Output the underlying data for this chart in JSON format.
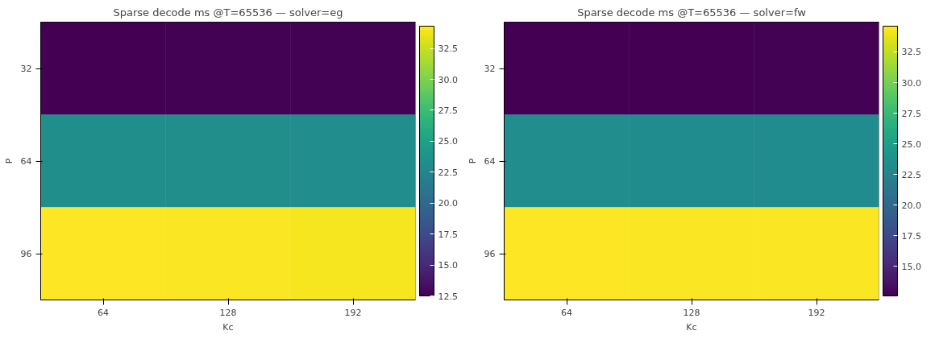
{
  "chart_data": [
    {
      "type": "heatmap",
      "title": "Sparse decode ms @T=65536 — solver=eg",
      "xlabel": "Kc",
      "ylabel": "P",
      "categories": [
        "64",
        "128",
        "192"
      ],
      "y_categories": [
        "32",
        "64",
        "96"
      ],
      "cells": [
        [
          12.5,
          12.6,
          12.6
        ],
        [
          23.4,
          23.3,
          23.2
        ],
        [
          34.3,
          34.2,
          34.0
        ]
      ],
      "clim": [
        12.5,
        34.3
      ],
      "cticks": [
        12.5,
        {
          "value": 15,
          "label": "15.0"
        },
        17.5,
        {
          "value": 20,
          "label": "20.0"
        },
        22.5,
        {
          "value": 25,
          "label": "25.0"
        },
        27.5,
        {
          "value": 30,
          "label": "30.0"
        },
        32.5
      ]
    },
    {
      "type": "heatmap",
      "title": "Sparse decode ms @T=65536 — solver=fw",
      "xlabel": "Kc",
      "ylabel": "P",
      "categories": [
        "64",
        "128",
        "192"
      ],
      "y_categories": [
        "32",
        "64",
        "96"
      ],
      "cells": [
        [
          12.6,
          12.6,
          12.7
        ],
        [
          23.4,
          23.3,
          23.3
        ],
        [
          34.6,
          34.5,
          34.5
        ]
      ],
      "clim": [
        12.6,
        34.6
      ],
      "cticks": [
        {
          "value": 15,
          "label": "15.0"
        },
        17.5,
        {
          "value": 20,
          "label": "20.0"
        },
        22.5,
        {
          "value": 25,
          "label": "25.0"
        },
        27.5,
        {
          "value": 30,
          "label": "30.0"
        },
        32.5
      ]
    }
  ]
}
